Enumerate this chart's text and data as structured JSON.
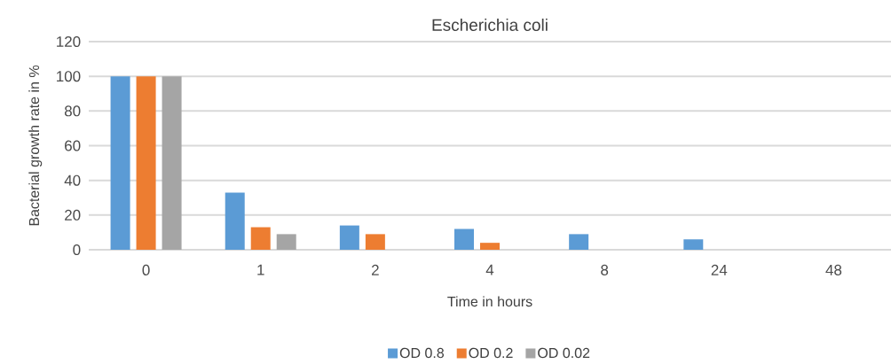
{
  "chart_data": {
    "type": "bar",
    "title": "Escherichia coli",
    "xlabel": "Time in hours",
    "ylabel": "Bacterial growth rate in %",
    "categories": [
      "0",
      "1",
      "2",
      "4",
      "8",
      "24",
      "48"
    ],
    "series": [
      {
        "name": "OD 0.8",
        "color": "#5b9bd5",
        "values": [
          100,
          33,
          14,
          12,
          9,
          6,
          null
        ]
      },
      {
        "name": "OD 0.2",
        "color": "#ed7d31",
        "values": [
          100,
          13,
          9,
          4,
          null,
          null,
          null
        ]
      },
      {
        "name": "OD 0.02",
        "color": "#a5a5a5",
        "values": [
          100,
          9,
          null,
          null,
          null,
          null,
          null
        ]
      }
    ],
    "ylim": [
      0,
      120
    ],
    "yticks": [
      0,
      20,
      40,
      60,
      80,
      100,
      120
    ],
    "grid": "y",
    "legend": "bottom"
  }
}
